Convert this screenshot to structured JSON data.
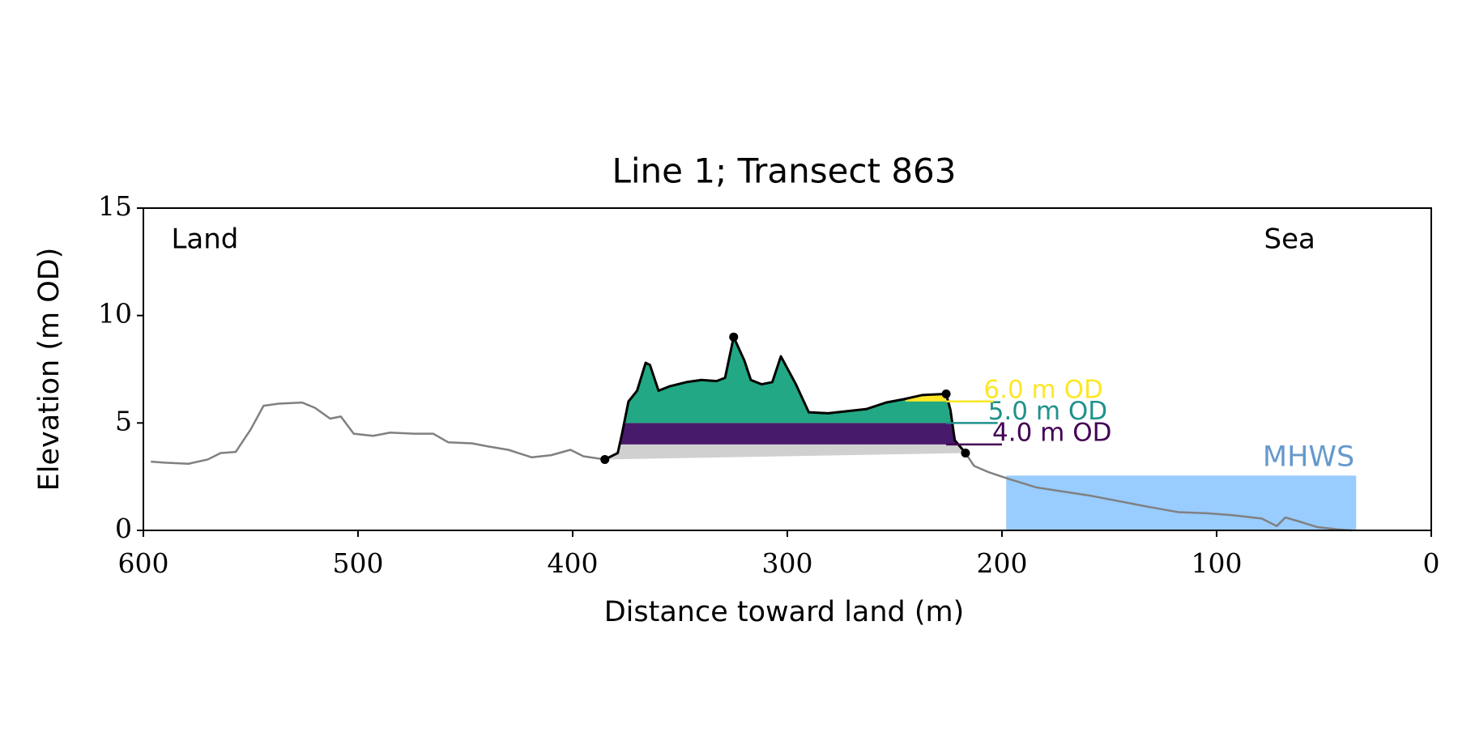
{
  "chart_data": {
    "type": "line",
    "title": "Line 1; Transect 863",
    "xlabel": "Distance toward land (m)",
    "ylabel": "Elevation (m OD)",
    "annotations": [
      {
        "text": "Land",
        "x": 587,
        "y": 13.5
      },
      {
        "text": "Sea",
        "x": 54,
        "y": 13.5
      }
    ],
    "xlim": [
      600,
      0
    ],
    "ylim": [
      0,
      15
    ],
    "xticks": [
      600,
      500,
      400,
      300,
      200,
      100,
      0
    ],
    "yticks": [
      0,
      5,
      10,
      15
    ],
    "color": "#808080",
    "dune_color": "#000000",
    "dune_range": [
      385,
      217
    ],
    "x": [
      596.5,
      590,
      579,
      570,
      564,
      557,
      550,
      544,
      537,
      526,
      520,
      513,
      508,
      502,
      493,
      485,
      474,
      465,
      458,
      447,
      439,
      430,
      419,
      410,
      401,
      395,
      385,
      382,
      379,
      377,
      374,
      370,
      366,
      364,
      360,
      355,
      347,
      340,
      333,
      329,
      325,
      320,
      317,
      312,
      307,
      303,
      296,
      290,
      281,
      272,
      263,
      254,
      246,
      237,
      226,
      224,
      222,
      217,
      213,
      206,
      197,
      184,
      171,
      158,
      145,
      132,
      118,
      105,
      92,
      79,
      72,
      68,
      61,
      53,
      44,
      37
    ],
    "values": [
      3.2,
      3.15,
      3.1,
      3.3,
      3.6,
      3.65,
      4.7,
      5.8,
      5.9,
      5.95,
      5.7,
      5.2,
      5.3,
      4.5,
      4.4,
      4.55,
      4.5,
      4.5,
      4.1,
      4.05,
      3.9,
      3.75,
      3.4,
      3.5,
      3.75,
      3.45,
      3.3,
      3.45,
      3.6,
      4.5,
      6.0,
      6.5,
      7.8,
      7.7,
      6.5,
      6.7,
      6.9,
      7.0,
      6.95,
      7.1,
      9.0,
      7.9,
      7.0,
      6.8,
      6.9,
      8.1,
      6.8,
      5.5,
      5.45,
      5.55,
      5.65,
      5.95,
      6.1,
      6.3,
      6.35,
      5.6,
      4.2,
      3.6,
      3.0,
      2.7,
      2.4,
      2.0,
      1.8,
      1.6,
      1.35,
      1.1,
      0.85,
      0.8,
      0.7,
      0.55,
      0.2,
      0.6,
      0.4,
      0.15,
      0.05,
      0.0
    ],
    "markers": {
      "x": [
        385,
        325,
        226,
        217
      ],
      "values": [
        3.3,
        9.0,
        6.35,
        3.6
      ]
    },
    "base_color": "#d0d0d0",
    "levels": [
      {
        "value": 4,
        "label": "4.0 m OD",
        "color": "#440154",
        "fill": "#481a6c",
        "line_end": 200
      },
      {
        "value": 5,
        "label": "5.0 m OD",
        "color": "#21918c",
        "fill": "#22a884",
        "line_end": 202
      },
      {
        "value": 6,
        "label": "6.0 m OD",
        "color": "#fde725",
        "fill": "#fde725",
        "line_end": 204,
        "fill_xlim": [
          245,
          226
        ]
      }
    ],
    "mhws": {
      "label": "MHWS",
      "value": 2.55,
      "xlim": [
        198,
        35
      ],
      "color": "#99ccff",
      "label_color": "#6699cc"
    }
  }
}
